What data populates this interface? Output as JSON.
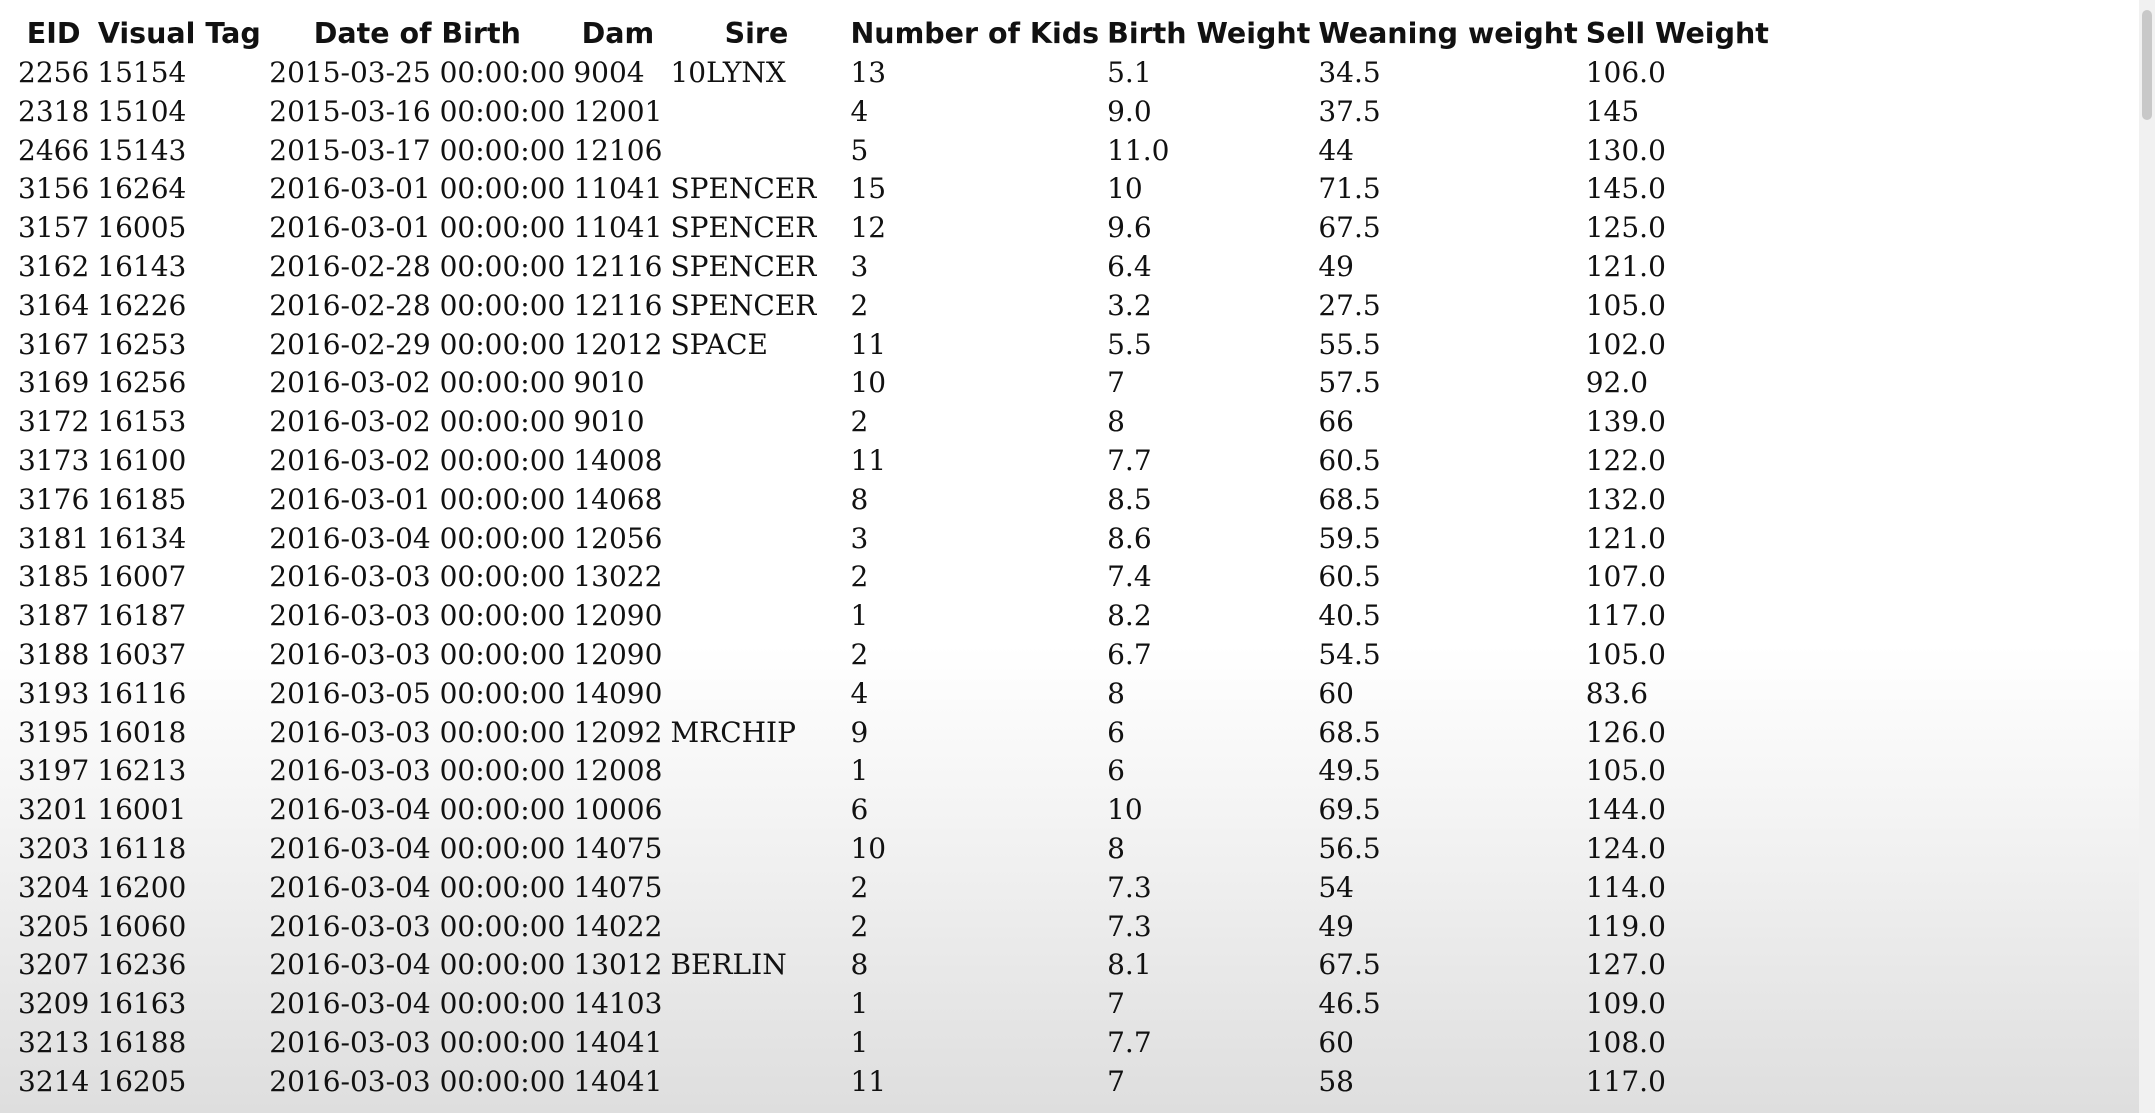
{
  "table": {
    "headers": [
      "EID",
      "Visual Tag",
      "Date of Birth",
      "Dam",
      "Sire",
      "Number of Kids",
      "Birth Weight",
      "Weaning weight",
      "Sell Weight"
    ],
    "rows": [
      [
        "2256",
        "15154",
        "2015-03-25 00:00:00",
        "9004",
        "10LYNX",
        "13",
        "5.1",
        "34.5",
        "106.0"
      ],
      [
        "2318",
        "15104",
        "2015-03-16 00:00:00",
        "12001",
        "",
        "4",
        "9.0",
        "37.5",
        "145"
      ],
      [
        "2466",
        "15143",
        "2015-03-17 00:00:00",
        "12106",
        "",
        "5",
        "11.0",
        "44",
        "130.0"
      ],
      [
        "3156",
        "16264",
        "2016-03-01 00:00:00",
        "11041",
        "SPENCER",
        "15",
        "10",
        "71.5",
        "145.0"
      ],
      [
        "3157",
        "16005",
        "2016-03-01 00:00:00",
        "11041",
        "SPENCER",
        "12",
        "9.6",
        "67.5",
        "125.0"
      ],
      [
        "3162",
        "16143",
        "2016-02-28 00:00:00",
        "12116",
        "SPENCER",
        "3",
        "6.4",
        "49",
        "121.0"
      ],
      [
        "3164",
        "16226",
        "2016-02-28 00:00:00",
        "12116",
        "SPENCER",
        "2",
        "3.2",
        "27.5",
        "105.0"
      ],
      [
        "3167",
        "16253",
        "2016-02-29 00:00:00",
        "12012",
        "SPACE",
        "11",
        "5.5",
        "55.5",
        "102.0"
      ],
      [
        "3169",
        "16256",
        "2016-03-02 00:00:00",
        "9010",
        "",
        "10",
        "7",
        "57.5",
        "92.0"
      ],
      [
        "3172",
        "16153",
        "2016-03-02 00:00:00",
        "9010",
        "",
        "2",
        "8",
        "66",
        "139.0"
      ],
      [
        "3173",
        "16100",
        "2016-03-02 00:00:00",
        "14008",
        "",
        "11",
        "7.7",
        "60.5",
        "122.0"
      ],
      [
        "3176",
        "16185",
        "2016-03-01 00:00:00",
        "14068",
        "",
        "8",
        "8.5",
        "68.5",
        "132.0"
      ],
      [
        "3181",
        "16134",
        "2016-03-04 00:00:00",
        "12056",
        "",
        "3",
        "8.6",
        "59.5",
        "121.0"
      ],
      [
        "3185",
        "16007",
        "2016-03-03 00:00:00",
        "13022",
        "",
        "2",
        "7.4",
        "60.5",
        "107.0"
      ],
      [
        "3187",
        "16187",
        "2016-03-03 00:00:00",
        "12090",
        "",
        "1",
        "8.2",
        "40.5",
        "117.0"
      ],
      [
        "3188",
        "16037",
        "2016-03-03 00:00:00",
        "12090",
        "",
        "2",
        "6.7",
        "54.5",
        "105.0"
      ],
      [
        "3193",
        "16116",
        "2016-03-05 00:00:00",
        "14090",
        "",
        "4",
        "8",
        "60",
        "83.6"
      ],
      [
        "3195",
        "16018",
        "2016-03-03 00:00:00",
        "12092",
        "MRCHIP",
        "9",
        "6",
        "68.5",
        "126.0"
      ],
      [
        "3197",
        "16213",
        "2016-03-03 00:00:00",
        "12008",
        "",
        "1",
        "6",
        "49.5",
        "105.0"
      ],
      [
        "3201",
        "16001",
        "2016-03-04 00:00:00",
        "10006",
        "",
        "6",
        "10",
        "69.5",
        "144.0"
      ],
      [
        "3203",
        "16118",
        "2016-03-04 00:00:00",
        "14075",
        "",
        "10",
        "8",
        "56.5",
        "124.0"
      ],
      [
        "3204",
        "16200",
        "2016-03-04 00:00:00",
        "14075",
        "",
        "2",
        "7.3",
        "54",
        "114.0"
      ],
      [
        "3205",
        "16060",
        "2016-03-03 00:00:00",
        "14022",
        "",
        "2",
        "7.3",
        "49",
        "119.0"
      ],
      [
        "3207",
        "16236",
        "2016-03-04 00:00:00",
        "13012",
        "BERLIN",
        "8",
        "8.1",
        "67.5",
        "127.0"
      ],
      [
        "3209",
        "16163",
        "2016-03-04 00:00:00",
        "14103",
        "",
        "1",
        "7",
        "46.5",
        "109.0"
      ],
      [
        "3213",
        "16188",
        "2016-03-03 00:00:00",
        "14041",
        "",
        "1",
        "7.7",
        "60",
        "108.0"
      ],
      [
        "3214",
        "16205",
        "2016-03-03 00:00:00",
        "14041",
        "",
        "11",
        "7",
        "58",
        "117.0"
      ]
    ]
  }
}
